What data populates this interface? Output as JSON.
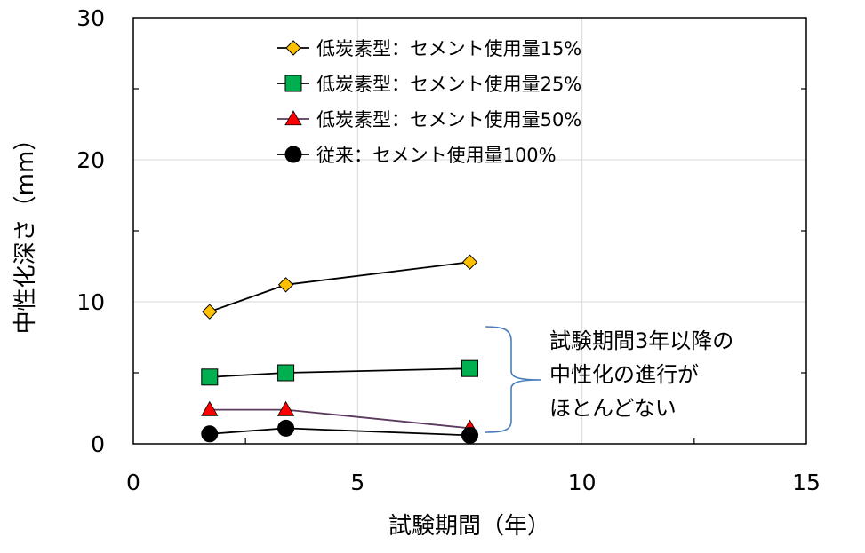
{
  "chart_data": {
    "type": "line",
    "xlabel": "試験期間（年）",
    "ylabel": "中性化深さ（mm）",
    "xlim": [
      0,
      15
    ],
    "ylim": [
      0,
      30
    ],
    "x_ticks": [
      0,
      5,
      10,
      15
    ],
    "y_ticks": [
      0,
      10,
      20,
      30
    ],
    "x_tick_labels": [
      "0",
      "5",
      "10",
      "15"
    ],
    "y_tick_labels": [
      "0",
      "10",
      "20",
      "30"
    ],
    "grid": true,
    "legend_position": "top-center",
    "series": [
      {
        "name": "低炭素型：セメント使用量15%",
        "marker": "diamond",
        "marker_color": "#ffc000",
        "line_color": "#000000",
        "x": [
          1.7,
          3.4,
          7.5
        ],
        "y": [
          9.3,
          11.2,
          12.8
        ]
      },
      {
        "name": "低炭素型：セメント使用量25%",
        "marker": "square",
        "marker_color": "#00b050",
        "line_color": "#000000",
        "x": [
          1.7,
          3.4,
          7.5
        ],
        "y": [
          4.7,
          5.0,
          5.3
        ]
      },
      {
        "name": "低炭素型：セメント使用量50%",
        "marker": "triangle",
        "marker_color": "#ff0000",
        "line_color": "#5b3a5e",
        "x": [
          1.7,
          3.4,
          7.5
        ],
        "y": [
          2.4,
          2.4,
          1.1
        ]
      },
      {
        "name": "従来：セメント使用量100%",
        "marker": "circle",
        "marker_color": "#000000",
        "line_color": "#000000",
        "x": [
          1.7,
          3.4,
          7.5
        ],
        "y": [
          0.7,
          1.1,
          0.6
        ]
      }
    ],
    "annotation": {
      "lines": [
        "試験期間3年以降の",
        "中性化の進行が",
        "ほとんどない"
      ],
      "brace_color": "#4a7ebb"
    }
  }
}
